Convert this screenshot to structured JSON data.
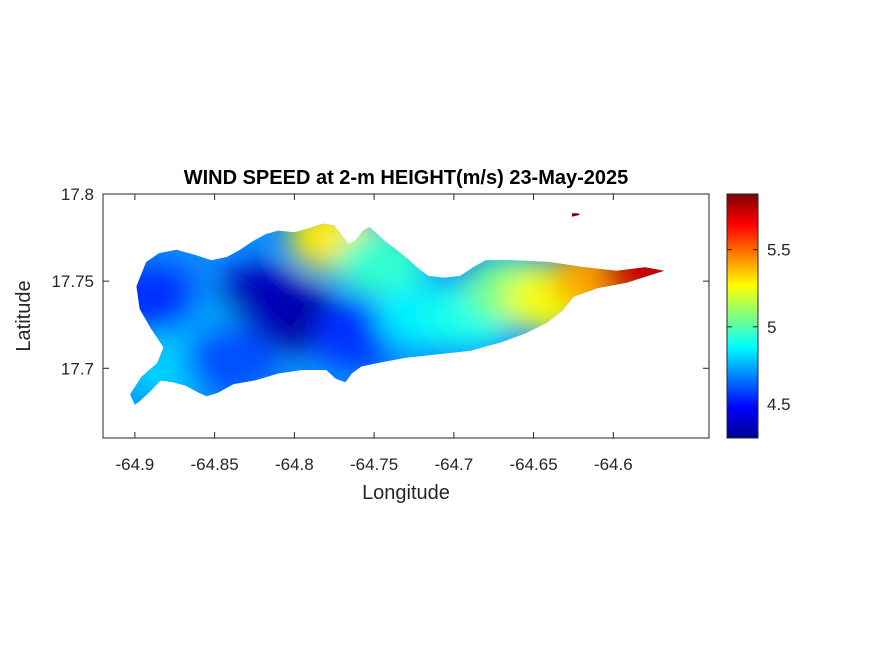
{
  "chart_data": {
    "type": "heatmap",
    "title": "WIND SPEED at 2-m HEIGHT(m/s) 23-May-2025",
    "xlabel": "Longitude",
    "ylabel": "Latitude",
    "xlim": [
      -64.92,
      -64.54
    ],
    "ylim": [
      17.66,
      17.8
    ],
    "xticks": [
      -64.9,
      -64.85,
      -64.8,
      -64.75,
      -64.7,
      -64.65,
      -64.6
    ],
    "xtick_labels": [
      "-64.9",
      "-64.85",
      "-64.8",
      "-64.75",
      "-64.7",
      "-64.65",
      "-64.6"
    ],
    "yticks": [
      17.7,
      17.75,
      17.8
    ],
    "ytick_labels": [
      "17.7",
      "17.75",
      "17.8"
    ],
    "colorbar": {
      "colormap": "jet",
      "min": 4.28,
      "max": 5.86,
      "ticks": [
        4.5,
        5,
        5.5
      ],
      "tick_labels": [
        "4.5",
        "5",
        "5.5"
      ]
    },
    "grid": false,
    "island_outline": [
      [
        -64.9,
        17.679
      ],
      [
        -64.896,
        17.682
      ],
      [
        -64.889,
        17.688
      ],
      [
        -64.884,
        17.693
      ],
      [
        -64.876,
        17.692
      ],
      [
        -64.868,
        17.69
      ],
      [
        -64.86,
        17.686
      ],
      [
        -64.855,
        17.684
      ],
      [
        -64.848,
        17.686
      ],
      [
        -64.838,
        17.691
      ],
      [
        -64.825,
        17.693
      ],
      [
        -64.81,
        17.697
      ],
      [
        -64.795,
        17.699
      ],
      [
        -64.78,
        17.699
      ],
      [
        -64.774,
        17.694
      ],
      [
        -64.768,
        17.692
      ],
      [
        -64.764,
        17.697
      ],
      [
        -64.758,
        17.701
      ],
      [
        -64.748,
        17.703
      ],
      [
        -64.73,
        17.706
      ],
      [
        -64.71,
        17.708
      ],
      [
        -64.69,
        17.71
      ],
      [
        -64.67,
        17.715
      ],
      [
        -64.655,
        17.72
      ],
      [
        -64.642,
        17.726
      ],
      [
        -64.632,
        17.733
      ],
      [
        -64.625,
        17.741
      ],
      [
        -64.61,
        17.746
      ],
      [
        -64.592,
        17.749
      ],
      [
        -64.575,
        17.754
      ],
      [
        -64.568,
        17.756
      ],
      [
        -64.58,
        17.758
      ],
      [
        -64.598,
        17.756
      ],
      [
        -64.618,
        17.758
      ],
      [
        -64.64,
        17.761
      ],
      [
        -64.662,
        17.762
      ],
      [
        -64.68,
        17.762
      ],
      [
        -64.688,
        17.758
      ],
      [
        -64.696,
        17.753
      ],
      [
        -64.706,
        17.752
      ],
      [
        -64.716,
        17.753
      ],
      [
        -64.722,
        17.757
      ],
      [
        -64.728,
        17.762
      ],
      [
        -64.736,
        17.768
      ],
      [
        -64.742,
        17.772
      ],
      [
        -64.748,
        17.777
      ],
      [
        -64.753,
        17.781
      ],
      [
        -64.757,
        17.779
      ],
      [
        -64.762,
        17.773
      ],
      [
        -64.766,
        17.771
      ],
      [
        -64.77,
        17.776
      ],
      [
        -64.775,
        17.782
      ],
      [
        -64.782,
        17.783
      ],
      [
        -64.792,
        17.78
      ],
      [
        -64.8,
        17.778
      ],
      [
        -64.81,
        17.779
      ],
      [
        -64.818,
        17.777
      ],
      [
        -64.826,
        17.773
      ],
      [
        -64.834,
        17.768
      ],
      [
        -64.842,
        17.764
      ],
      [
        -64.852,
        17.762
      ],
      [
        -64.862,
        17.765
      ],
      [
        -64.874,
        17.768
      ],
      [
        -64.885,
        17.766
      ],
      [
        -64.893,
        17.761
      ],
      [
        -64.899,
        17.747
      ],
      [
        -64.897,
        17.734
      ],
      [
        -64.89,
        17.723
      ],
      [
        -64.882,
        17.712
      ],
      [
        -64.886,
        17.703
      ],
      [
        -64.896,
        17.695
      ],
      [
        -64.903,
        17.685
      ]
    ],
    "islet_outline": [
      [
        -64.626,
        17.789
      ],
      [
        -64.622,
        17.789
      ],
      [
        -64.621,
        17.788
      ],
      [
        -64.626,
        17.787
      ]
    ],
    "wind_field_centers": [
      {
        "lon": -64.8,
        "lat": 17.73,
        "value": 4.28
      },
      {
        "lon": -64.82,
        "lat": 17.74,
        "value": 4.35
      },
      {
        "lon": -64.86,
        "lat": 17.72,
        "value": 4.75
      },
      {
        "lon": -64.89,
        "lat": 17.74,
        "value": 4.55
      },
      {
        "lon": -64.88,
        "lat": 17.7,
        "value": 4.8
      },
      {
        "lon": -64.84,
        "lat": 17.705,
        "value": 4.6
      },
      {
        "lon": -64.76,
        "lat": 17.72,
        "value": 4.55
      },
      {
        "lon": -64.775,
        "lat": 17.775,
        "value": 5.3
      },
      {
        "lon": -64.745,
        "lat": 17.76,
        "value": 4.95
      },
      {
        "lon": -64.72,
        "lat": 17.73,
        "value": 4.85
      },
      {
        "lon": -64.69,
        "lat": 17.73,
        "value": 4.9
      },
      {
        "lon": -64.665,
        "lat": 17.745,
        "value": 5.05
      },
      {
        "lon": -64.64,
        "lat": 17.74,
        "value": 5.25
      },
      {
        "lon": -64.61,
        "lat": 17.75,
        "value": 5.4
      },
      {
        "lon": -64.58,
        "lat": 17.755,
        "value": 5.75
      },
      {
        "lon": -64.624,
        "lat": 17.788,
        "value": 5.86
      }
    ]
  }
}
